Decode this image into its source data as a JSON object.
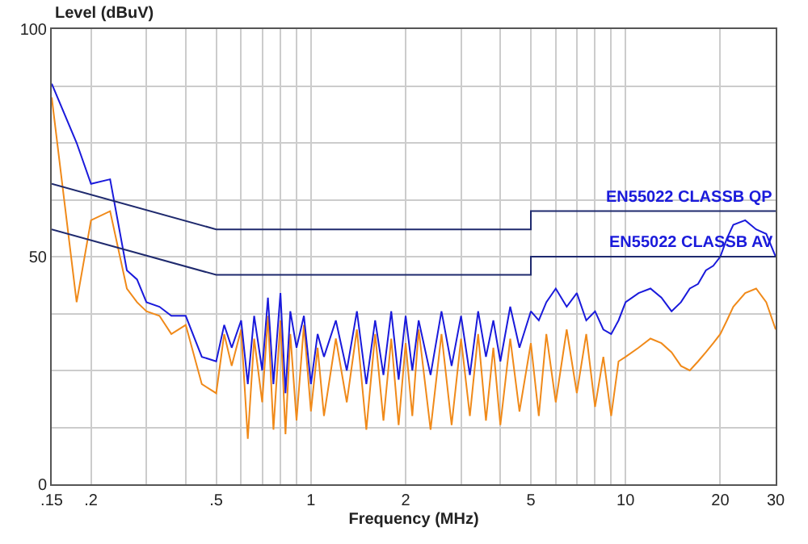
{
  "chart_data": {
    "type": "line",
    "xlabel": "Frequency (MHz)",
    "ylabel": "Level (dBuV)",
    "log": "x",
    "grid": true,
    "legend": false,
    "line_style": "solid",
    "marker": "none",
    "xlim": [
      0.15,
      30
    ],
    "ylim": [
      0,
      100
    ],
    "xticks": [
      {
        "value": 0.15,
        "label": ".15"
      },
      {
        "value": 0.2,
        "label": ".2"
      },
      {
        "value": 0.3,
        "label": null
      },
      {
        "value": 0.4,
        "label": null
      },
      {
        "value": 0.5,
        "label": ".5"
      },
      {
        "value": 0.6,
        "label": null
      },
      {
        "value": 0.7,
        "label": null
      },
      {
        "value": 0.8,
        "label": null
      },
      {
        "value": 0.9,
        "label": null
      },
      1,
      2,
      {
        "value": 3,
        "label": null
      },
      {
        "value": 4,
        "label": null
      },
      5,
      {
        "value": 6,
        "label": null
      },
      {
        "value": 7,
        "label": null
      },
      {
        "value": 8,
        "label": null
      },
      {
        "value": 9,
        "label": null
      },
      10,
      20,
      30
    ],
    "yticks": [
      0,
      {
        "value": 12.5,
        "label": null
      },
      {
        "value": 25,
        "label": null
      },
      {
        "value": 37.5,
        "label": null
      },
      50,
      {
        "value": 62.5,
        "label": null
      },
      {
        "value": 75,
        "label": null
      },
      {
        "value": 87.5,
        "label": null
      },
      100
    ],
    "x": [
      0.15,
      0.18,
      0.2,
      0.23,
      0.26,
      0.28,
      0.3,
      0.33,
      0.36,
      0.4,
      0.45,
      0.5,
      0.53,
      0.56,
      0.6,
      0.63,
      0.66,
      0.7,
      0.73,
      0.76,
      0.8,
      0.83,
      0.86,
      0.9,
      0.95,
      1,
      1.05,
      1.1,
      1.2,
      1.3,
      1.4,
      1.5,
      1.6,
      1.7,
      1.8,
      1.9,
      2,
      2.1,
      2.2,
      2.4,
      2.6,
      2.8,
      3,
      3.2,
      3.4,
      3.6,
      3.8,
      4,
      4.3,
      4.6,
      5,
      5.3,
      5.6,
      6,
      6.5,
      7,
      7.5,
      8,
      8.5,
      9,
      9.5,
      10,
      11,
      12,
      13,
      14,
      15,
      16,
      17,
      18,
      19,
      20,
      21,
      22,
      24,
      26,
      28,
      30
    ],
    "series": [
      {
        "color": "#f08a1a",
        "values": [
          85,
          40,
          58,
          60,
          43,
          40,
          38,
          37,
          33,
          35,
          22,
          20,
          33,
          26,
          34,
          10,
          32,
          18,
          37,
          12,
          36,
          11,
          33,
          14,
          35,
          16,
          30,
          15,
          32,
          18,
          34,
          12,
          33,
          14,
          32,
          13,
          31,
          15,
          34,
          12,
          33,
          13,
          32,
          15,
          33,
          14,
          30,
          13,
          32,
          16,
          31,
          15,
          33,
          18,
          34,
          20,
          33,
          17,
          28,
          15,
          27,
          28,
          30,
          32,
          31,
          29,
          26,
          25,
          27,
          29,
          31,
          33,
          36,
          39,
          42,
          43,
          40,
          34
        ]
      },
      {
        "color": "#1a1adb",
        "values": [
          88,
          75,
          66,
          67,
          47,
          45,
          40,
          39,
          37,
          37,
          28,
          27,
          35,
          30,
          36,
          22,
          37,
          25,
          41,
          22,
          42,
          20,
          38,
          30,
          37,
          22,
          33,
          28,
          36,
          25,
          38,
          22,
          36,
          24,
          38,
          23,
          37,
          25,
          36,
          24,
          38,
          26,
          37,
          24,
          38,
          28,
          36,
          27,
          39,
          30,
          38,
          36,
          40,
          43,
          39,
          42,
          36,
          38,
          34,
          33,
          36,
          40,
          42,
          43,
          41,
          38,
          40,
          43,
          44,
          47,
          48,
          50,
          54,
          57,
          58,
          56,
          55,
          50
        ]
      },
      {
        "name": "EN55022 CLASSB QP",
        "color": "#1f2a6e",
        "x": [
          0.15,
          0.5,
          5,
          5,
          30
        ],
        "values": [
          66,
          56,
          56,
          60,
          60
        ]
      },
      {
        "name": "EN55022 CLASSB AV",
        "color": "#1f2a6e",
        "x": [
          0.15,
          0.5,
          5,
          5,
          30
        ],
        "values": [
          56,
          46,
          46,
          50,
          50
        ]
      }
    ]
  }
}
